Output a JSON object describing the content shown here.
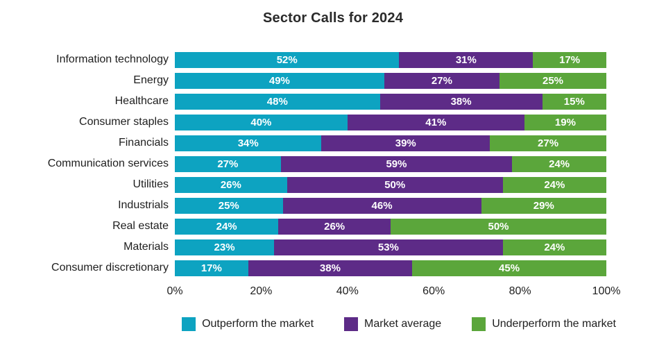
{
  "title": "Sector Calls for 2024",
  "chart_data": {
    "type": "bar",
    "stacked": true,
    "orientation": "horizontal",
    "title": "Sector Calls for 2024",
    "categories": [
      "Information technology",
      "Energy",
      "Healthcare",
      "Consumer staples",
      "Financials",
      "Communication services",
      "Utilities",
      "Industrials",
      "Real estate",
      "Materials",
      "Consumer discretionary"
    ],
    "series": [
      {
        "name": "Outperform the market",
        "color": "#0da3c1",
        "values": [
          52,
          49,
          48,
          40,
          34,
          27,
          26,
          25,
          24,
          23,
          17
        ]
      },
      {
        "name": "Market average",
        "color": "#5d2b87",
        "values": [
          31,
          27,
          38,
          41,
          39,
          59,
          50,
          46,
          26,
          53,
          38
        ]
      },
      {
        "name": "Underperform the market",
        "color": "#5ba63b",
        "values": [
          17,
          25,
          15,
          19,
          27,
          24,
          24,
          29,
          50,
          24,
          45
        ]
      }
    ],
    "value_suffix": "%",
    "x_ticks": [
      "0%",
      "20%",
      "40%",
      "60%",
      "80%",
      "100%"
    ],
    "xlim": [
      0,
      100
    ],
    "grid": false,
    "legend_position": "bottom",
    "value_label_color": "#ffffff"
  }
}
